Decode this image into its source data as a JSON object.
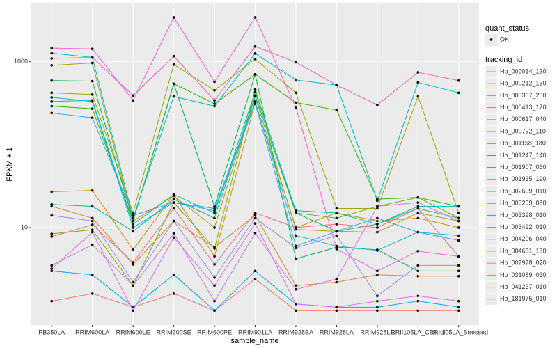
{
  "chart_data": {
    "type": "line",
    "x_label": "sample_name",
    "y_label": "FPKM + 1",
    "categories": [
      "PB350LA",
      "RRIM600LA",
      "RRIM600LE",
      "RRIM600SE",
      "RRIM600PE",
      "RRIM901LA",
      "RRIM928BA",
      "RRIM928LA",
      "RRIM928LE",
      "RRII105LA_Control",
      "RRII105LA_Stressed"
    ],
    "ylim": [
      0.67,
      5000
    ],
    "yticks": [
      10,
      1000
    ],
    "log_y": true,
    "grid": true,
    "legend_position": "right",
    "shape_legend": {
      "title": "quant_status",
      "labels": [
        "OK"
      ]
    },
    "color_legend_title": "tracking_id",
    "series": [
      {
        "name": "Hb_000014_130",
        "color": "#F8766D",
        "values": [
          1.3,
          1.6,
          1.1,
          1.6,
          1.0,
          2.4,
          1.0,
          1.0,
          1.0,
          1.0,
          1.0
        ]
      },
      {
        "name": "Hb_000212_130",
        "color": "#EA8331",
        "values": [
          18,
          13,
          3.6,
          12,
          5.8,
          14,
          2.0,
          2.2,
          2.7,
          2.6,
          2.6
        ]
      },
      {
        "name": "Hb_000307_250",
        "color": "#D89000",
        "values": [
          27,
          28,
          5.4,
          25,
          4.5,
          320,
          10,
          15,
          12,
          13,
          10
        ]
      },
      {
        "name": "Hb_000413_170",
        "color": "#C09B00",
        "values": [
          900,
          960,
          12,
          24,
          10,
          380,
          9.5,
          9.0,
          8.8,
          15,
          12
        ]
      },
      {
        "name": "Hb_000617_040",
        "color": "#A3A500",
        "values": [
          420,
          400,
          15,
          920,
          450,
          1070,
          420,
          17,
          17,
          380,
          15
        ]
      },
      {
        "name": "Hb_000792_110",
        "color": "#7CAE00",
        "values": [
          8.4,
          9.4,
          2.0,
          20,
          5.6,
          460,
          15,
          13,
          18,
          23,
          13
        ]
      },
      {
        "name": "Hb_001158_180",
        "color": "#39B600",
        "values": [
          290,
          270,
          12,
          540,
          310,
          700,
          320,
          260,
          22,
          23,
          18
        ]
      },
      {
        "name": "Hb_001247_140",
        "color": "#00BB4E",
        "values": [
          590,
          580,
          12,
          540,
          18,
          700,
          4.2,
          5.8,
          5.4,
          3.0,
          3.0
        ]
      },
      {
        "name": "Hb_001907_060",
        "color": "#00BF7D",
        "values": [
          19,
          18,
          9.0,
          22,
          13,
          390,
          15,
          9.0,
          11,
          17,
          13
        ]
      },
      {
        "name": "Hb_001935_190",
        "color": "#00C1A3",
        "values": [
          330,
          340,
          11,
          25,
          15,
          430,
          16,
          15,
          11,
          18,
          18
        ]
      },
      {
        "name": "Hb_002609_010",
        "color": "#00BFC4",
        "values": [
          1260,
          1120,
          13,
          380,
          290,
          1250,
          600,
          520,
          21,
          560,
          420
        ]
      },
      {
        "name": "Hb_003299_080",
        "color": "#00BAE0",
        "values": [
          370,
          330,
          10,
          20,
          17,
          330,
          8.0,
          6.0,
          5.3,
          8.8,
          8.0
        ]
      },
      {
        "name": "Hb_003398_010",
        "color": "#00B0F6",
        "values": [
          3.0,
          2.7,
          1.1,
          2.7,
          1.0,
          3.0,
          1.2,
          1.1,
          1.1,
          1.3,
          1.1
        ]
      },
      {
        "name": "Hb_003492_010",
        "color": "#35A2FF",
        "values": [
          240,
          210,
          14,
          20,
          16,
          310,
          6.0,
          9.0,
          13,
          8.8,
          7.0
        ]
      },
      {
        "name": "Hb_004206_040",
        "color": "#9590FF",
        "values": [
          14,
          12,
          2.2,
          12,
          2.5,
          13,
          5.7,
          8,
          1.5,
          3.5,
          3.5
        ]
      },
      {
        "name": "Hb_004631_160",
        "color": "#C77CFF",
        "values": [
          3.5,
          6.2,
          2.0,
          8.5,
          1.3,
          8.6,
          1.8,
          2.4,
          18,
          20,
          12
        ]
      },
      {
        "name": "Hb_007978_020",
        "color": "#E76BF3",
        "values": [
          3.2,
          8.8,
          1.0,
          7.6,
          2.0,
          11.2,
          1.2,
          1.1,
          1.3,
          1.5,
          1.3
        ]
      },
      {
        "name": "Hb_031089_030",
        "color": "#FA62DB",
        "values": [
          1450,
          1420,
          340,
          3400,
          570,
          3400,
          280,
          5.5,
          3.0,
          5.2,
          4.5
        ]
      },
      {
        "name": "Hb_041237_010",
        "color": "#FF62BC",
        "values": [
          1090,
          1120,
          390,
          1160,
          340,
          1520,
          980,
          520,
          300,
          740,
          590
        ]
      },
      {
        "name": "Hb_181975_010",
        "color": "#FF6C91",
        "values": [
          7.8,
          10.8,
          3.8,
          17,
          3.6,
          15,
          10,
          11,
          10,
          17,
          4.5
        ]
      }
    ]
  }
}
